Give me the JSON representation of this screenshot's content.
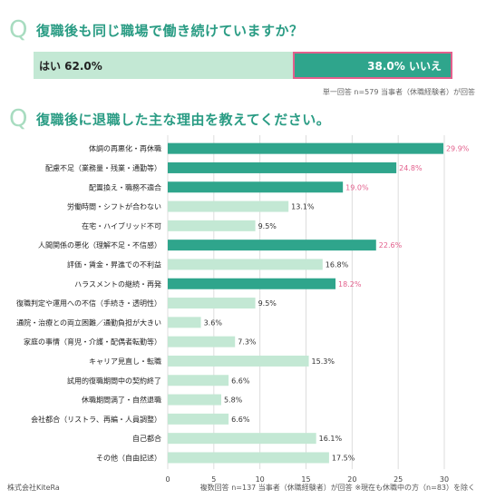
{
  "question1": {
    "mark": "Q",
    "text": "復職後も同じ職場で働き続けていますか？",
    "yes_label": "はい 62.0%",
    "no_label": "38.0% いいえ",
    "note": "単一回答 n=579 当事者（休職経験者）が回答"
  },
  "question2": {
    "mark": "Q",
    "text": "復職後に退職した主な理由を教えてください。",
    "note": "複数回答 n=137 当事者（休職経験者）が回答 ※現在も休職中の方（n=83）を除く"
  },
  "company": "株式会社KiteRa",
  "colors": {
    "light": "#c3e8d4",
    "dark": "#2fa58c",
    "highlight_text": "#e35f8c",
    "title": "#2a9c84"
  },
  "chart_data": [
    {
      "type": "bar",
      "orientation": "horizontal",
      "categories": [
        "復職後も同じ職場で働き続けていますか？"
      ],
      "series": [
        {
          "name": "はい",
          "values": [
            62.0
          ]
        },
        {
          "name": "いいえ",
          "values": [
            38.0
          ]
        }
      ],
      "stacked": true
    },
    {
      "type": "bar",
      "orientation": "horizontal",
      "categories": [
        "体調の再悪化・再休職",
        "配慮不足（業務量・残業・通勤等）",
        "配置換え・職務不適合",
        "労働時間・シフトが合わない",
        "在宅・ハイブリッド不可",
        "人間関係の悪化（理解不足・不信感）",
        "評価・賃金・昇進での不利益",
        "ハラスメントの継続・再発",
        "復職判定や運用への不信（手続き・透明性）",
        "通院・治療との両立困難／通勤負担が大きい",
        "家庭の事情（育児・介護・配偶者転勤等）",
        "キャリア見直し・転職",
        "試用的復職期間中の契約終了",
        "休職期間満了・自然退職",
        "会社都合（リストラ、再編・人員調整）",
        "自己都合",
        "その他（自由記述）"
      ],
      "values": [
        29.9,
        24.8,
        19.0,
        13.1,
        9.5,
        22.6,
        16.8,
        18.2,
        9.5,
        3.6,
        7.3,
        15.3,
        6.6,
        5.8,
        6.6,
        16.1,
        17.5
      ],
      "value_labels": [
        "29.9%",
        "24.8%",
        "19.0%",
        "13.1%",
        "9.5%",
        "22.6%",
        "16.8%",
        "18.2%",
        "9.5%",
        "3.6%",
        "7.3%",
        "15.3%",
        "6.6%",
        "5.8%",
        "6.6%",
        "16.1%",
        "17.5%"
      ],
      "highlighted": [
        true,
        true,
        true,
        false,
        false,
        true,
        false,
        true,
        false,
        false,
        false,
        false,
        false,
        false,
        false,
        false,
        false
      ],
      "xlim": [
        0,
        30
      ],
      "xticks": [
        "0",
        "5",
        "10",
        "15",
        "20",
        "25",
        "30"
      ],
      "grid": true
    }
  ]
}
